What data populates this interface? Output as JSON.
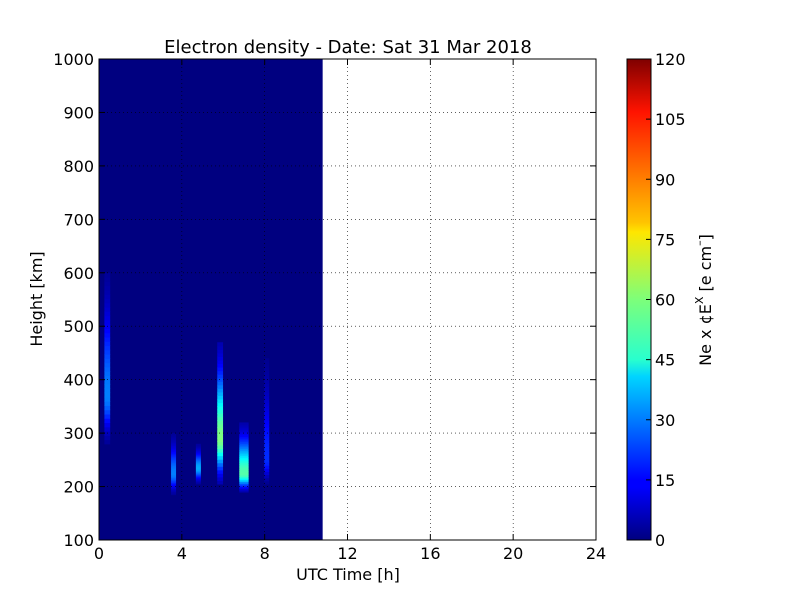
{
  "chart_data": {
    "type": "heatmap",
    "title": "Electron density - Date: Sat 31 Mar 2018",
    "xlabel": "UTC Time [h]",
    "ylabel": "Height [km]",
    "xlim": [
      0,
      24
    ],
    "ylim": [
      100,
      1000
    ],
    "x_ticks": [
      0,
      4,
      8,
      12,
      16,
      20,
      24
    ],
    "y_ticks": [
      100,
      200,
      300,
      400,
      500,
      600,
      700,
      800,
      900,
      1000
    ],
    "grid": true,
    "data_coverage_hours": [
      0,
      10.8
    ],
    "background_value": 0,
    "colorbar": {
      "label_main": "Ne x ¢E",
      "label_sup": "X",
      "label_unit": " [e cm",
      "label_sup2": "–",
      "label_close": "]",
      "colormap": "jet",
      "range": [
        0,
        120
      ],
      "ticks": [
        0,
        15,
        30,
        45,
        60,
        75,
        90,
        105,
        120
      ]
    },
    "features": [
      {
        "t": 0.4,
        "w": 0.28,
        "h_bottom": 280,
        "h_top": 600,
        "peak_h": 370,
        "peak": 30
      },
      {
        "t": 3.6,
        "w": 0.24,
        "h_bottom": 185,
        "h_top": 300,
        "peak_h": 225,
        "peak": 30
      },
      {
        "t": 4.8,
        "w": 0.24,
        "h_bottom": 205,
        "h_top": 280,
        "peak_h": 235,
        "peak": 35
      },
      {
        "t": 5.85,
        "w": 0.28,
        "h_bottom": 205,
        "h_top": 470,
        "peak_h": 290,
        "peak": 60
      },
      {
        "t": 7.0,
        "w": 0.45,
        "h_bottom": 190,
        "h_top": 320,
        "peak_h": 225,
        "peak": 55
      },
      {
        "t": 8.1,
        "w": 0.24,
        "h_bottom": 205,
        "h_top": 440,
        "peak_h": 250,
        "peak": 20
      }
    ]
  }
}
